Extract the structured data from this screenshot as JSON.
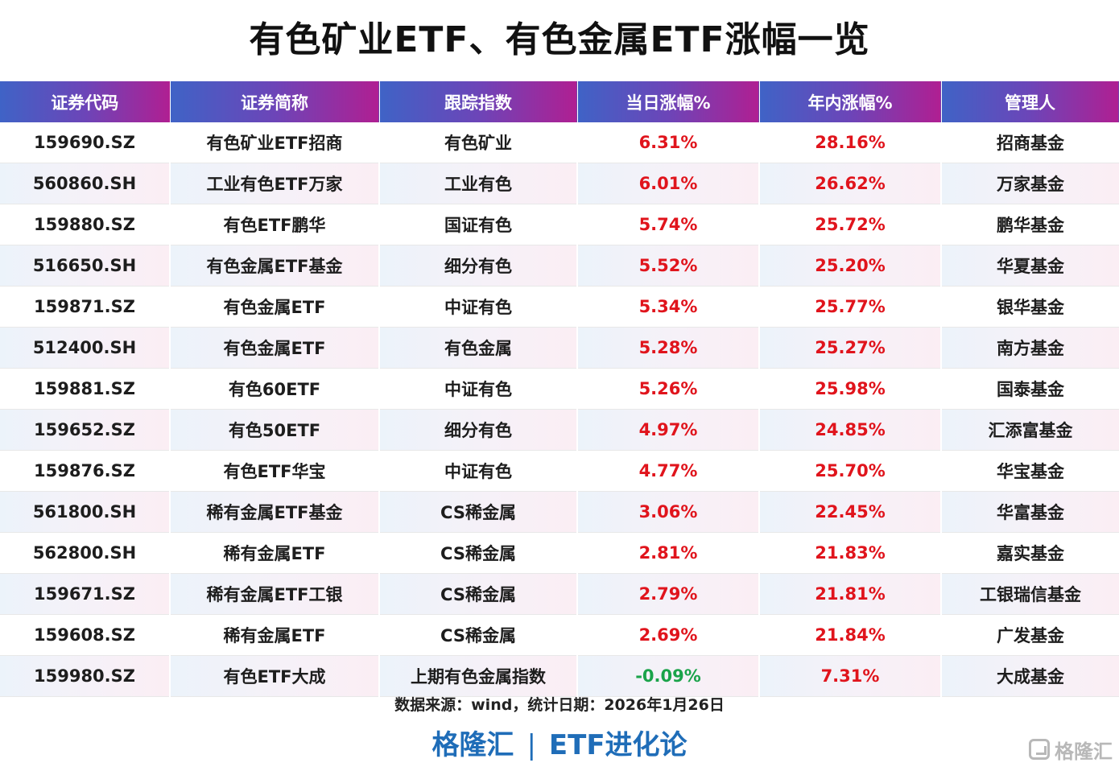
{
  "title": "有色矿业ETF、有色金属ETF涨幅一览",
  "table": {
    "headers": [
      "证券代码",
      "证券简称",
      "跟踪指数",
      "当日涨幅%",
      "年内涨幅%",
      "管理人"
    ],
    "rows": [
      {
        "code": "159690.SZ",
        "name": "有色矿业ETF招商",
        "index": "有色矿业",
        "day": "6.31%",
        "ytd": "28.16%",
        "manager": "招商基金"
      },
      {
        "code": "560860.SH",
        "name": "工业有色ETF万家",
        "index": "工业有色",
        "day": "6.01%",
        "ytd": "26.62%",
        "manager": "万家基金"
      },
      {
        "code": "159880.SZ",
        "name": "有色ETF鹏华",
        "index": "国证有色",
        "day": "5.74%",
        "ytd": "25.72%",
        "manager": "鹏华基金"
      },
      {
        "code": "516650.SH",
        "name": "有色金属ETF基金",
        "index": "细分有色",
        "day": "5.52%",
        "ytd": "25.20%",
        "manager": "华夏基金"
      },
      {
        "code": "159871.SZ",
        "name": "有色金属ETF",
        "index": "中证有色",
        "day": "5.34%",
        "ytd": "25.77%",
        "manager": "银华基金"
      },
      {
        "code": "512400.SH",
        "name": "有色金属ETF",
        "index": "有色金属",
        "day": "5.28%",
        "ytd": "25.27%",
        "manager": "南方基金"
      },
      {
        "code": "159881.SZ",
        "name": "有色60ETF",
        "index": "中证有色",
        "day": "5.26%",
        "ytd": "25.98%",
        "manager": "国泰基金"
      },
      {
        "code": "159652.SZ",
        "name": "有色50ETF",
        "index": "细分有色",
        "day": "4.97%",
        "ytd": "24.85%",
        "manager": "汇添富基金"
      },
      {
        "code": "159876.SZ",
        "name": "有色ETF华宝",
        "index": "中证有色",
        "day": "4.77%",
        "ytd": "25.70%",
        "manager": "华宝基金"
      },
      {
        "code": "561800.SH",
        "name": "稀有金属ETF基金",
        "index": "CS稀金属",
        "day": "3.06%",
        "ytd": "22.45%",
        "manager": "华富基金"
      },
      {
        "code": "562800.SH",
        "name": "稀有金属ETF",
        "index": "CS稀金属",
        "day": "2.81%",
        "ytd": "21.83%",
        "manager": "嘉实基金"
      },
      {
        "code": "159671.SZ",
        "name": "稀有金属ETF工银",
        "index": "CS稀金属",
        "day": "2.79%",
        "ytd": "21.81%",
        "manager": "工银瑞信基金"
      },
      {
        "code": "159608.SZ",
        "name": "稀有金属ETF",
        "index": "CS稀金属",
        "day": "2.69%",
        "ytd": "21.84%",
        "manager": "广发基金"
      },
      {
        "code": "159980.SZ",
        "name": "有色ETF大成",
        "index": "上期有色金属指数",
        "day": "-0.09%",
        "ytd": "7.31%",
        "manager": "大成基金"
      }
    ]
  },
  "source": "数据来源：wind，统计日期：2026年1月26日",
  "brand": {
    "left": "格隆汇",
    "separator": "|",
    "right": "ETF进化论"
  },
  "watermark": "格隆汇",
  "colors": {
    "up": "#e0141c",
    "down": "#1aa34a",
    "brand": "#1f6db8",
    "header_gradient_start": "#3f63c6",
    "header_gradient_end": "#b01f92"
  }
}
